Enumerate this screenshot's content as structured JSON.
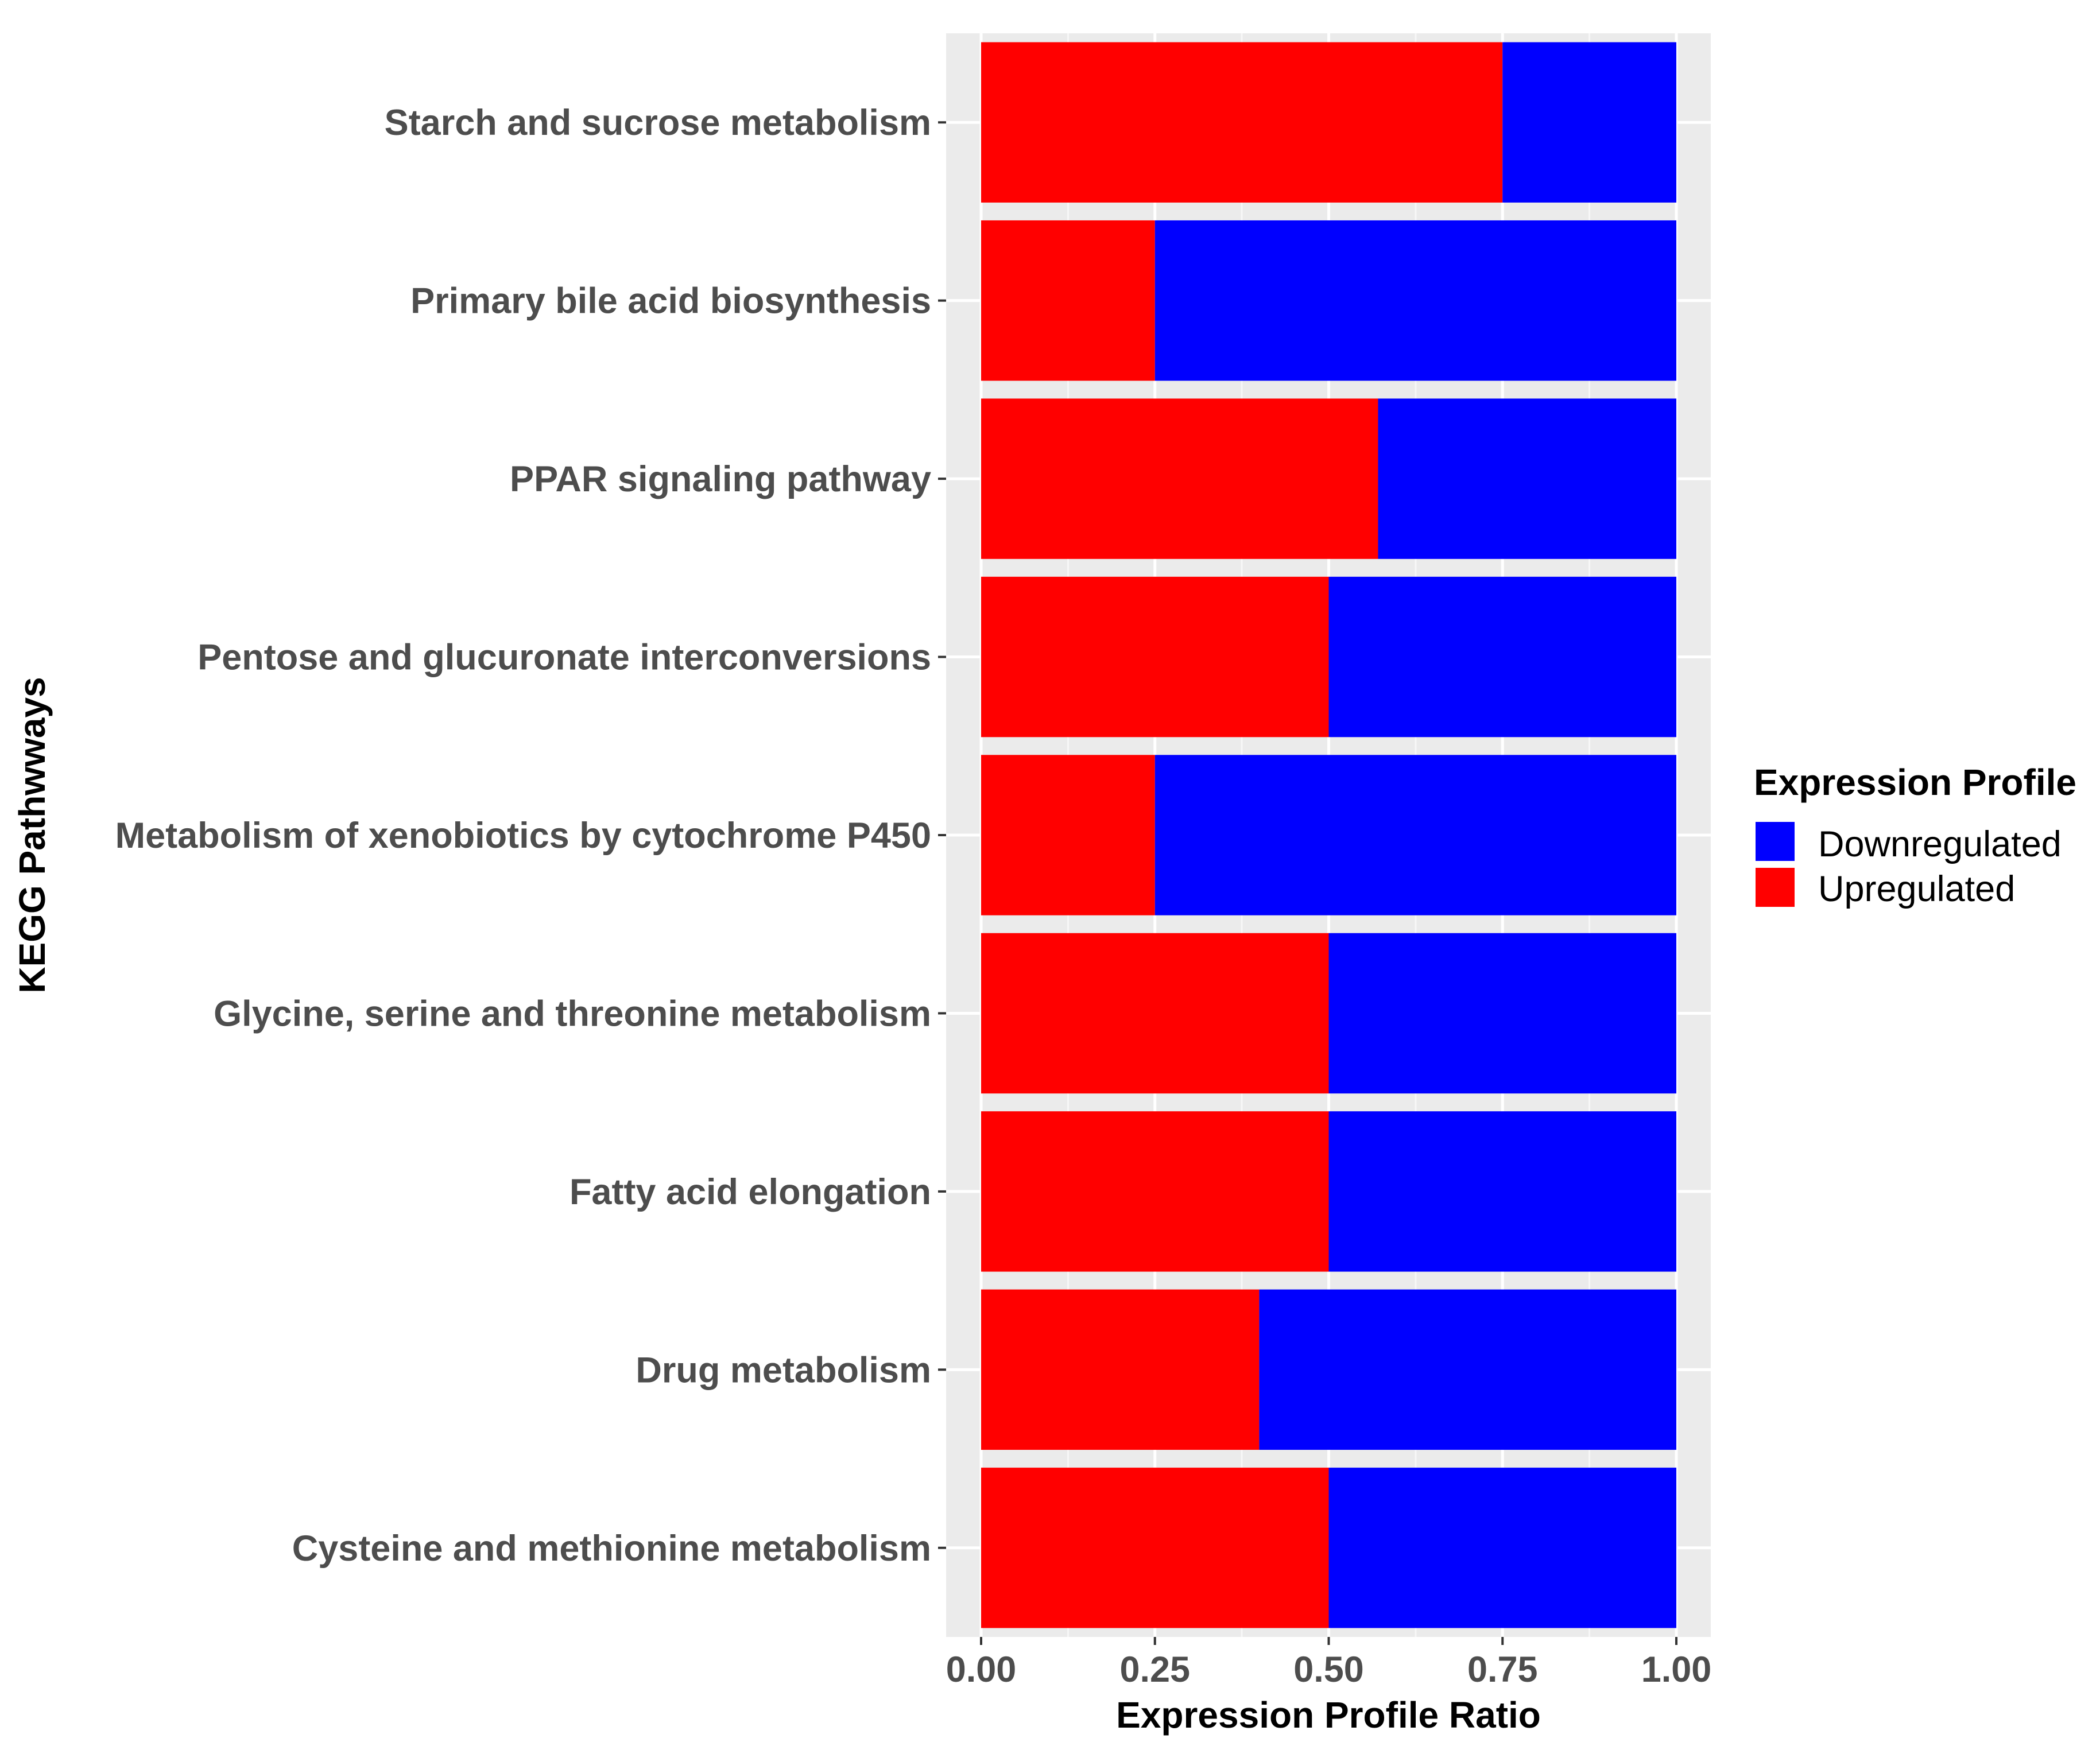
{
  "chart_data": {
    "type": "bar",
    "orientation": "horizontal",
    "stacked": true,
    "title": "",
    "xlabel": "Expression Profile Ratio",
    "ylabel": "KEGG Pathwways",
    "xlim": [
      0,
      1
    ],
    "xticks": [
      "0.00",
      "0.25",
      "0.50",
      "0.75",
      "1.00"
    ],
    "xtick_values": [
      0,
      0.25,
      0.5,
      0.75,
      1.0
    ],
    "grid": true,
    "categories": [
      "Starch and sucrose metabolism",
      "Primary bile acid biosynthesis",
      "PPAR signaling pathway",
      "Pentose and glucuronate interconversions",
      "Metabolism of xenobiotics by cytochrome P450",
      "Glycine, serine and threonine metabolism",
      "Fatty acid elongation",
      "Drug metabolism",
      "Cysteine and methionine metabolism"
    ],
    "series": [
      {
        "name": "Upregulated",
        "color": "#ff0000",
        "values": [
          0.75,
          0.25,
          0.571,
          0.5,
          0.25,
          0.5,
          0.5,
          0.4,
          0.5
        ]
      },
      {
        "name": "Downregulated",
        "color": "#0000ff",
        "values": [
          0.25,
          0.75,
          0.429,
          0.5,
          0.75,
          0.5,
          0.5,
          0.6,
          0.5
        ]
      }
    ],
    "legend": {
      "title": "Expression Profile",
      "position": "right",
      "entries": [
        {
          "label": "Downregulated",
          "color": "#0000ff"
        },
        {
          "label": "Upregulated",
          "color": "#ff0000"
        }
      ]
    }
  }
}
